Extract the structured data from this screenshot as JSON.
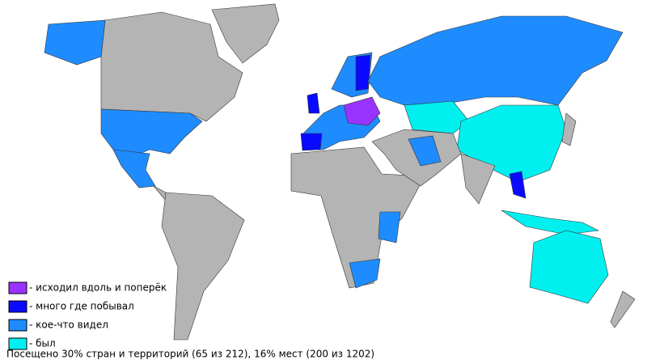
{
  "legend": {
    "items": [
      {
        "label": "- исходил вдоль и поперёк",
        "color": "#9933ff"
      },
      {
        "label": "- много где побывал",
        "color": "#0a0aff"
      },
      {
        "label": "- кое-что видел",
        "color": "#1e8cff"
      },
      {
        "label": "- был",
        "color": "#00f0f0"
      }
    ]
  },
  "footer": {
    "text": "Посещено 30% стран и территорий (65 из 212), 16% мест (200 из 1202)"
  }
}
